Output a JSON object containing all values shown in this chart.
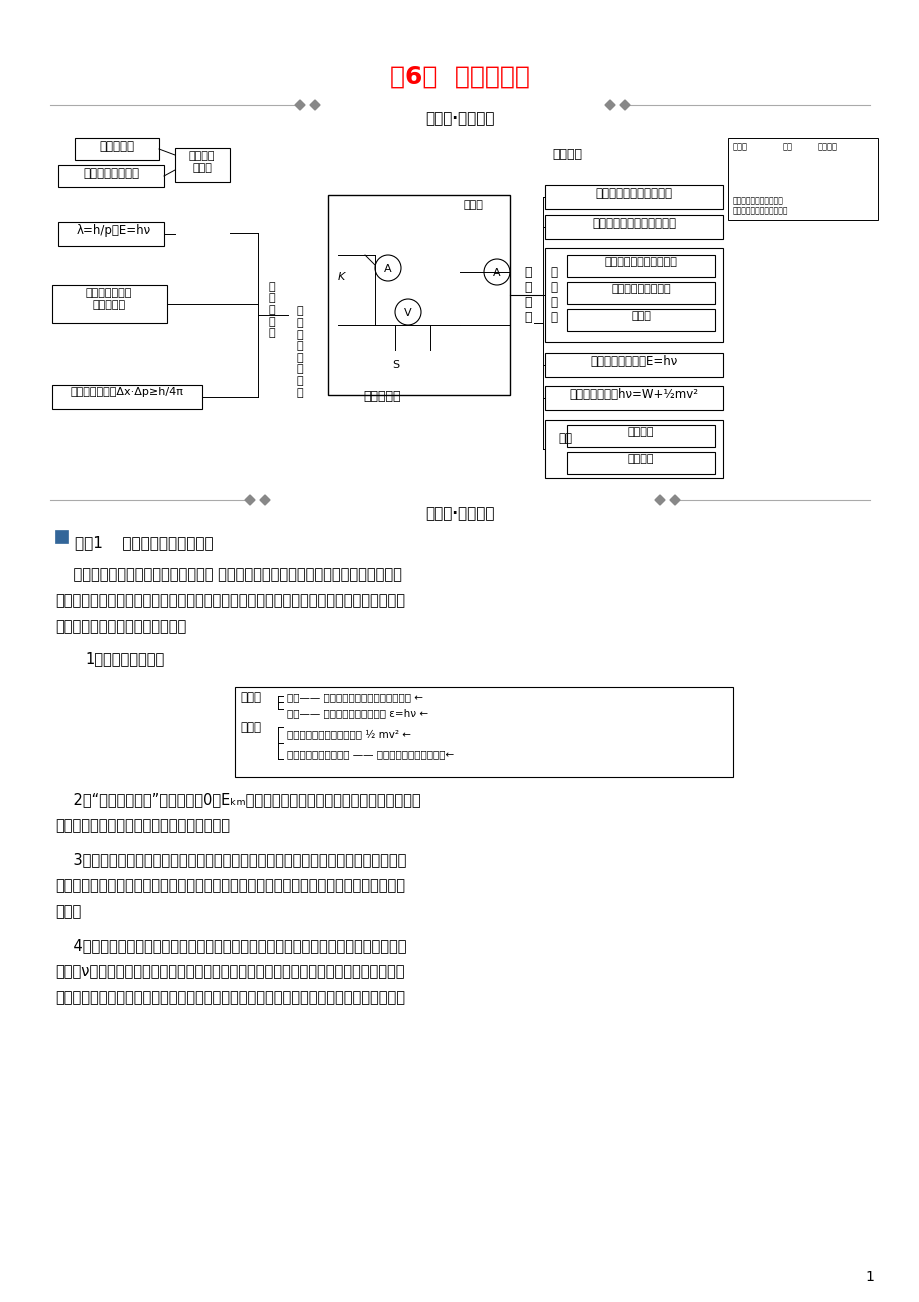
{
  "title": "瘔6章  波粒二象性",
  "title_color": "#FF0000",
  "section1_title": "巹固层·知识整合",
  "section2_title": "提升层·题型探究",
  "subject_title": "主题1    光电效应规律及其应用",
  "bg_color": "#FFFFFF",
  "page_num": "1"
}
